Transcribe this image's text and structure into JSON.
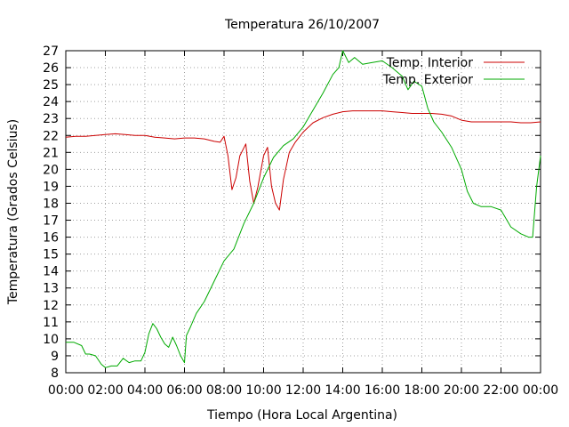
{
  "chart_data": {
    "type": "line",
    "title": "Temperatura 26/10/2007",
    "xlabel": "Tiempo (Hora Local Argentina)",
    "ylabel": "Temperatura (Grados Celsius)",
    "grid": true,
    "legend_position": "top-right",
    "xlim": [
      0,
      24
    ],
    "ylim": [
      8,
      27
    ],
    "x_ticks": [
      0,
      2,
      4,
      6,
      8,
      10,
      12,
      14,
      16,
      18,
      20,
      22,
      24
    ],
    "x_tick_labels": [
      "00:00",
      "02:00",
      "04:00",
      "06:00",
      "08:00",
      "10:00",
      "12:00",
      "14:00",
      "16:00",
      "18:00",
      "20:00",
      "22:00",
      "00:00"
    ],
    "y_ticks": [
      8,
      9,
      10,
      11,
      12,
      13,
      14,
      15,
      16,
      17,
      18,
      19,
      20,
      21,
      22,
      23,
      24,
      25,
      26,
      27
    ],
    "y_tick_labels": [
      "8",
      "9",
      "10",
      "11",
      "12",
      "13",
      "14",
      "15",
      "16",
      "17",
      "18",
      "19",
      "20",
      "21",
      "22",
      "23",
      "24",
      "25",
      "26",
      "27"
    ],
    "series": [
      {
        "name": "Temp. Interior",
        "color": "#cc0000",
        "x": [
          0.0,
          0.5,
          1.0,
          1.5,
          2.0,
          2.5,
          3.0,
          3.5,
          4.0,
          4.5,
          5.0,
          5.5,
          6.0,
          6.5,
          7.0,
          7.5,
          7.8,
          8.0,
          8.2,
          8.4,
          8.6,
          8.8,
          9.1,
          9.3,
          9.5,
          9.7,
          10.0,
          10.2,
          10.4,
          10.6,
          10.8,
          11.0,
          11.3,
          11.6,
          12.0,
          12.5,
          13.0,
          13.5,
          14.0,
          14.5,
          15.0,
          15.5,
          16.0,
          16.5,
          17.0,
          17.5,
          18.0,
          18.5,
          19.0,
          19.5,
          20.0,
          20.5,
          21.0,
          21.5,
          22.0,
          22.5,
          23.0,
          23.5,
          24.0
        ],
        "y": [
          21.9,
          21.95,
          21.95,
          22.0,
          22.05,
          22.1,
          22.05,
          22.0,
          22.0,
          21.9,
          21.85,
          21.8,
          21.85,
          21.85,
          21.8,
          21.65,
          21.6,
          21.95,
          20.8,
          18.8,
          19.5,
          20.8,
          21.5,
          19.3,
          18.0,
          18.9,
          20.8,
          21.3,
          19.0,
          18.0,
          17.6,
          19.4,
          21.0,
          21.6,
          22.2,
          22.75,
          23.05,
          23.25,
          23.4,
          23.45,
          23.45,
          23.45,
          23.45,
          23.4,
          23.35,
          23.3,
          23.3,
          23.3,
          23.25,
          23.15,
          22.9,
          22.8,
          22.8,
          22.8,
          22.8,
          22.8,
          22.75,
          22.75,
          22.8
        ]
      },
      {
        "name": "Temp. Exterior",
        "color": "#00aa00",
        "x": [
          0.0,
          0.4,
          0.8,
          1.0,
          1.2,
          1.5,
          1.8,
          2.0,
          2.3,
          2.6,
          2.9,
          3.2,
          3.5,
          3.8,
          4.0,
          4.2,
          4.4,
          4.6,
          4.8,
          5.0,
          5.2,
          5.4,
          5.6,
          5.8,
          6.0,
          6.1,
          6.3,
          6.6,
          7.0,
          7.5,
          8.0,
          8.5,
          9.0,
          9.5,
          10.0,
          10.5,
          11.0,
          11.5,
          12.0,
          12.5,
          13.0,
          13.5,
          13.8,
          14.0,
          14.3,
          14.6,
          15.0,
          15.5,
          16.0,
          16.5,
          17.0,
          17.3,
          17.6,
          18.0,
          18.3,
          18.6,
          19.0,
          19.5,
          20.0,
          20.3,
          20.6,
          21.0,
          21.5,
          22.0,
          22.5,
          23.0,
          23.4,
          23.6,
          23.8,
          24.0
        ],
        "y": [
          9.8,
          9.8,
          9.6,
          9.1,
          9.1,
          9.0,
          8.5,
          8.3,
          8.4,
          8.4,
          8.85,
          8.6,
          8.7,
          8.7,
          9.2,
          10.3,
          10.9,
          10.6,
          10.1,
          9.7,
          9.5,
          10.1,
          9.6,
          9.0,
          8.6,
          10.2,
          10.7,
          11.5,
          12.2,
          13.4,
          14.6,
          15.3,
          16.8,
          18.0,
          19.5,
          20.7,
          21.4,
          21.8,
          22.5,
          23.5,
          24.5,
          25.6,
          26.0,
          27.0,
          26.3,
          26.6,
          26.2,
          26.3,
          26.4,
          26.0,
          25.5,
          24.7,
          25.2,
          24.9,
          23.6,
          22.8,
          22.2,
          21.3,
          20.0,
          18.7,
          18.0,
          17.8,
          17.8,
          17.6,
          16.6,
          16.2,
          16.0,
          16.0,
          19.0,
          20.8
        ]
      }
    ]
  }
}
